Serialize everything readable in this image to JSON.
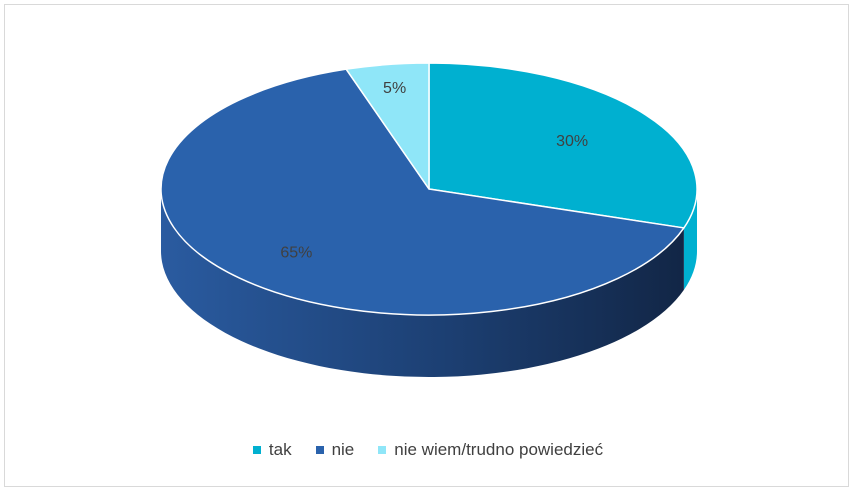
{
  "chart_data": {
    "type": "pie",
    "style": "3d",
    "categories": [
      "tak",
      "nie",
      "nie wiem/trudno powiedzieć"
    ],
    "values": [
      30,
      65,
      5
    ],
    "data_labels": [
      "30%",
      "65%",
      "5%"
    ],
    "colors": [
      "#00B0D0",
      "#2A62AC",
      "#8FE6F8"
    ],
    "legend_position": "bottom"
  }
}
